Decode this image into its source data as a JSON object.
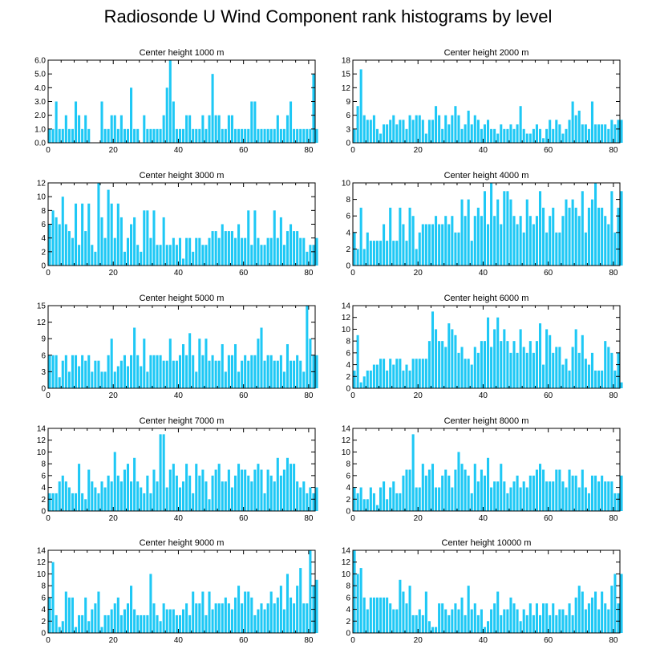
{
  "title": "Radiosonde U Wind Component rank histograms by level",
  "colors": {
    "bar": "#1ec8f5",
    "axis": "#000000"
  },
  "chart_data": [
    {
      "type": "bar",
      "title": "Center height 1000 m",
      "xlim": [
        0,
        82
      ],
      "ylim": [
        0,
        6
      ],
      "xticks": [
        0,
        20,
        40,
        60,
        80
      ],
      "yticks": [
        0,
        1,
        2,
        3,
        4,
        5,
        6
      ],
      "ytick_labels": [
        "0.0",
        "1.0",
        "2.0",
        "3.0",
        "4.0",
        "5.0",
        "6.0"
      ],
      "values": [
        1,
        1,
        3,
        1,
        1,
        2,
        1,
        1,
        3,
        2,
        1,
        2,
        1,
        0,
        0,
        0,
        3,
        1,
        1,
        2,
        2,
        1,
        2,
        1,
        1,
        4,
        1,
        1,
        0,
        2,
        1,
        1,
        1,
        1,
        1,
        2,
        4,
        6,
        3,
        1,
        1,
        1,
        2,
        2,
        1,
        1,
        1,
        2,
        1,
        2,
        5,
        2,
        2,
        1,
        1,
        2,
        2,
        1,
        1,
        1,
        1,
        1,
        3,
        3,
        1,
        1,
        1,
        1,
        1,
        1,
        2,
        1,
        1,
        2,
        3,
        1,
        1,
        1,
        1,
        1,
        1,
        5,
        1
      ]
    },
    {
      "type": "bar",
      "title": "Center height 2000 m",
      "xlim": [
        0,
        82
      ],
      "ylim": [
        0,
        18
      ],
      "xticks": [
        0,
        20,
        40,
        60,
        80
      ],
      "yticks": [
        0,
        3,
        6,
        9,
        12,
        15,
        18
      ],
      "ytick_labels": [
        "0",
        "3",
        "6",
        "9",
        "12",
        "15",
        "18"
      ],
      "values": [
        3,
        8,
        16,
        6,
        5,
        5,
        6,
        3,
        2,
        4,
        4,
        5,
        6,
        4,
        5,
        5,
        3,
        6,
        5,
        6,
        6,
        5,
        2,
        5,
        5,
        8,
        6,
        3,
        6,
        4,
        6,
        8,
        6,
        3,
        4,
        7,
        4,
        6,
        5,
        3,
        4,
        5,
        3,
        3,
        2,
        4,
        3,
        3,
        4,
        3,
        4,
        8,
        3,
        2,
        2,
        3,
        4,
        3,
        1,
        3,
        5,
        3,
        5,
        4,
        2,
        3,
        5,
        9,
        6,
        7,
        4,
        4,
        3,
        9,
        4,
        4,
        4,
        4,
        3,
        5,
        4,
        5,
        5
      ]
    },
    {
      "type": "bar",
      "title": "Center height 3000 m",
      "xlim": [
        0,
        82
      ],
      "ylim": [
        0,
        12
      ],
      "xticks": [
        0,
        20,
        40,
        60,
        80
      ],
      "yticks": [
        0,
        2,
        4,
        6,
        8,
        10,
        12
      ],
      "ytick_labels": [
        "0",
        "2",
        "4",
        "6",
        "8",
        "10",
        "12"
      ],
      "values": [
        6,
        8,
        7,
        6,
        10,
        6,
        5,
        4,
        9,
        3,
        9,
        5,
        9,
        3,
        2,
        12,
        7,
        4,
        11,
        9,
        4,
        9,
        7,
        2,
        4,
        6,
        7,
        3,
        2,
        8,
        8,
        4,
        8,
        3,
        3,
        7,
        3,
        3,
        4,
        3,
        4,
        1,
        4,
        4,
        2,
        4,
        4,
        3,
        3,
        4,
        5,
        5,
        4,
        6,
        5,
        5,
        5,
        4,
        6,
        4,
        4,
        8,
        3,
        8,
        4,
        3,
        3,
        4,
        4,
        8,
        4,
        7,
        3,
        5,
        6,
        5,
        5,
        4,
        4,
        2,
        3,
        3,
        4
      ]
    },
    {
      "type": "bar",
      "title": "Center height 4000 m",
      "xlim": [
        0,
        82
      ],
      "ylim": [
        0,
        10
      ],
      "xticks": [
        0,
        20,
        40,
        60,
        80
      ],
      "yticks": [
        0,
        2,
        4,
        6,
        8,
        10
      ],
      "ytick_labels": [
        "0",
        "2",
        "4",
        "6",
        "8",
        "10"
      ],
      "values": [
        4,
        2,
        7,
        2,
        4,
        3,
        3,
        3,
        3,
        5,
        3,
        7,
        3,
        3,
        7,
        5,
        3,
        7,
        6,
        2,
        4,
        5,
        5,
        5,
        5,
        6,
        5,
        5,
        6,
        5,
        6,
        4,
        4,
        8,
        6,
        8,
        3,
        6,
        7,
        6,
        9,
        5,
        10,
        6,
        8,
        5,
        9,
        9,
        8,
        6,
        5,
        6,
        4,
        8,
        6,
        5,
        6,
        9,
        7,
        4,
        6,
        7,
        4,
        4,
        6,
        8,
        7,
        8,
        7,
        6,
        9,
        4,
        7,
        8,
        10,
        7,
        7,
        6,
        5,
        9,
        4,
        7,
        9
      ]
    },
    {
      "type": "bar",
      "title": "Center height 5000 m",
      "xlim": [
        0,
        82
      ],
      "ylim": [
        0,
        15
      ],
      "xticks": [
        0,
        20,
        40,
        60,
        80
      ],
      "yticks": [
        0,
        3,
        6,
        9,
        12,
        15
      ],
      "ytick_labels": [
        "0",
        "3",
        "6",
        "9",
        "12",
        "15"
      ],
      "values": [
        6,
        6,
        6,
        2,
        5,
        6,
        3,
        6,
        6,
        4,
        6,
        5,
        6,
        3,
        5,
        5,
        3,
        3,
        6,
        9,
        3,
        4,
        5,
        6,
        4,
        6,
        11,
        6,
        4,
        9,
        3,
        6,
        6,
        6,
        6,
        5,
        5,
        9,
        5,
        5,
        6,
        8,
        6,
        10,
        6,
        3,
        9,
        6,
        9,
        5,
        6,
        5,
        5,
        8,
        3,
        6,
        6,
        8,
        3,
        5,
        6,
        5,
        6,
        6,
        9,
        11,
        5,
        6,
        6,
        5,
        5,
        6,
        3,
        8,
        5,
        5,
        6,
        5,
        3,
        15,
        9,
        6,
        6
      ]
    },
    {
      "type": "bar",
      "title": "Center height 6000 m",
      "xlim": [
        0,
        82
      ],
      "ylim": [
        0,
        14
      ],
      "xticks": [
        0,
        20,
        40,
        60,
        80
      ],
      "yticks": [
        0,
        2,
        4,
        6,
        8,
        10,
        12,
        14
      ],
      "ytick_labels": [
        "0",
        "2",
        "4",
        "6",
        "8",
        "10",
        "12",
        "14"
      ],
      "values": [
        3,
        9,
        1,
        2,
        3,
        3,
        4,
        4,
        5,
        5,
        3,
        5,
        4,
        5,
        5,
        3,
        4,
        3,
        5,
        5,
        5,
        5,
        5,
        8,
        13,
        10,
        8,
        8,
        7,
        11,
        10,
        9,
        6,
        7,
        5,
        5,
        4,
        7,
        6,
        8,
        8,
        12,
        7,
        10,
        12,
        8,
        10,
        8,
        6,
        8,
        6,
        10,
        7,
        6,
        8,
        6,
        8,
        11,
        4,
        10,
        9,
        6,
        7,
        7,
        4,
        5,
        3,
        7,
        10,
        6,
        9,
        5,
        4,
        6,
        3,
        3,
        3,
        8,
        7,
        6,
        3,
        6,
        1
      ]
    },
    {
      "type": "bar",
      "title": "Center height 7000 m",
      "xlim": [
        0,
        82
      ],
      "ylim": [
        0,
        14
      ],
      "xticks": [
        0,
        20,
        40,
        60,
        80
      ],
      "yticks": [
        0,
        2,
        4,
        6,
        8,
        10,
        12,
        14
      ],
      "ytick_labels": [
        "0",
        "2",
        "4",
        "6",
        "8",
        "10",
        "12",
        "14"
      ],
      "values": [
        3,
        3,
        3,
        5,
        6,
        5,
        4,
        3,
        3,
        8,
        3,
        2,
        7,
        5,
        4,
        3,
        5,
        4,
        6,
        5,
        10,
        6,
        5,
        7,
        8,
        5,
        9,
        5,
        4,
        3,
        6,
        3,
        7,
        5,
        13,
        13,
        4,
        7,
        8,
        6,
        4,
        5,
        8,
        6,
        3,
        8,
        6,
        7,
        5,
        2,
        6,
        7,
        8,
        5,
        5,
        7,
        4,
        6,
        8,
        7,
        7,
        6,
        5,
        7,
        8,
        7,
        3,
        7,
        6,
        5,
        9,
        6,
        7,
        9,
        8,
        8,
        5,
        4,
        5,
        3,
        4,
        3,
        4
      ]
    },
    {
      "type": "bar",
      "title": "Center height 8000 m",
      "xlim": [
        0,
        82
      ],
      "ylim": [
        0,
        14
      ],
      "xticks": [
        0,
        20,
        40,
        60,
        80
      ],
      "yticks": [
        0,
        2,
        4,
        6,
        8,
        10,
        12,
        14
      ],
      "ytick_labels": [
        "0",
        "2",
        "4",
        "6",
        "8",
        "10",
        "12",
        "14"
      ],
      "values": [
        4,
        3,
        4,
        2,
        2,
        4,
        3,
        1,
        4,
        5,
        2,
        4,
        5,
        3,
        3,
        6,
        7,
        7,
        13,
        4,
        4,
        8,
        6,
        7,
        8,
        4,
        4,
        6,
        7,
        6,
        4,
        7,
        10,
        8,
        7,
        6,
        3,
        8,
        5,
        7,
        6,
        9,
        4,
        5,
        5,
        8,
        5,
        3,
        4,
        5,
        6,
        4,
        5,
        4,
        6,
        6,
        7,
        8,
        7,
        5,
        5,
        5,
        7,
        7,
        5,
        4,
        7,
        6,
        6,
        4,
        7,
        4,
        3,
        6,
        6,
        5,
        6,
        5,
        5,
        5,
        3,
        3,
        6
      ]
    },
    {
      "type": "bar",
      "title": "Center height 9000 m",
      "xlim": [
        0,
        82
      ],
      "ylim": [
        0,
        14
      ],
      "xticks": [
        0,
        20,
        40,
        60,
        80
      ],
      "yticks": [
        0,
        2,
        4,
        6,
        8,
        10,
        12,
        14
      ],
      "ytick_labels": [
        "0",
        "2",
        "4",
        "6",
        "8",
        "10",
        "12",
        "14"
      ],
      "values": [
        6,
        12,
        3,
        1,
        2,
        7,
        6,
        6,
        1,
        3,
        3,
        6,
        2,
        4,
        5,
        7,
        1,
        3,
        3,
        4,
        5,
        6,
        3,
        4,
        5,
        8,
        4,
        3,
        3,
        3,
        3,
        10,
        5,
        3,
        2,
        5,
        4,
        4,
        4,
        3,
        3,
        4,
        5,
        3,
        7,
        5,
        5,
        7,
        3,
        7,
        4,
        5,
        5,
        5,
        6,
        5,
        4,
        6,
        8,
        5,
        7,
        7,
        6,
        3,
        4,
        5,
        4,
        5,
        7,
        5,
        6,
        8,
        4,
        10,
        6,
        5,
        8,
        11,
        5,
        5,
        14,
        8,
        9
      ]
    },
    {
      "type": "bar",
      "title": "Center height 10000 m",
      "xlim": [
        0,
        82
      ],
      "ylim": [
        0,
        14
      ],
      "xticks": [
        0,
        20,
        40,
        60,
        80
      ],
      "yticks": [
        0,
        2,
        4,
        6,
        8,
        10,
        12,
        14
      ],
      "ytick_labels": [
        "0",
        "2",
        "4",
        "6",
        "8",
        "10",
        "12",
        "14"
      ],
      "values": [
        14,
        10,
        11,
        6,
        4,
        6,
        6,
        6,
        6,
        6,
        6,
        5,
        4,
        4,
        9,
        7,
        5,
        8,
        3,
        3,
        4,
        3,
        7,
        2,
        1,
        1,
        5,
        5,
        4,
        3,
        4,
        5,
        4,
        6,
        3,
        8,
        4,
        5,
        3,
        4,
        1,
        2,
        4,
        5,
        7,
        3,
        4,
        4,
        6,
        5,
        4,
        2,
        4,
        3,
        5,
        3,
        5,
        3,
        5,
        5,
        3,
        5,
        3,
        4,
        4,
        3,
        5,
        3,
        6,
        8,
        7,
        4,
        5,
        6,
        7,
        4,
        7,
        5,
        4,
        8,
        10,
        5,
        10
      ]
    }
  ]
}
